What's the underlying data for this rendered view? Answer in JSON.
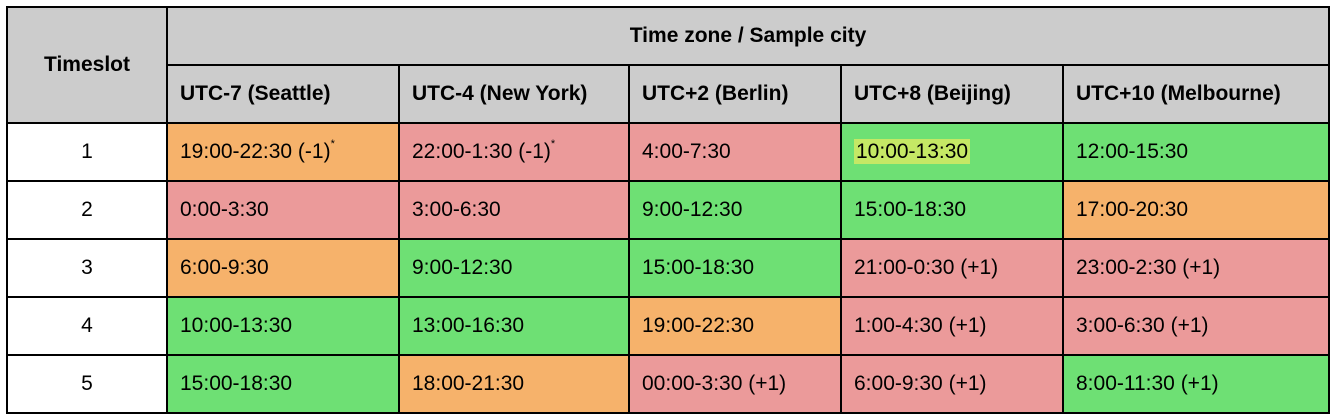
{
  "table": {
    "timeslot_header": "Timeslot",
    "group_header": "Time zone / Sample city",
    "columns": [
      "UTC-7 (Seattle)",
      "UTC-4 (New York)",
      "UTC+2 (Berlin)",
      "UTC+8 (Beijing)",
      "UTC+10 (Melbourne)"
    ],
    "rows": [
      {
        "slot": "1",
        "cells": [
          {
            "text": "19:00-22:30 (-1)",
            "note": "*",
            "color": "orange"
          },
          {
            "text": "22:00-1:30 (-1)",
            "note": "*",
            "color": "red"
          },
          {
            "text": "4:00-7:30",
            "note": "",
            "color": "red"
          },
          {
            "text": "10:00-13:30",
            "note": "",
            "color": "green",
            "highlight": "yellow-green"
          },
          {
            "text": "12:00-15:30",
            "note": "",
            "color": "green"
          }
        ]
      },
      {
        "slot": "2",
        "cells": [
          {
            "text": "0:00-3:30",
            "note": "",
            "color": "red"
          },
          {
            "text": "3:00-6:30",
            "note": "",
            "color": "red"
          },
          {
            "text": "9:00-12:30",
            "note": "",
            "color": "green"
          },
          {
            "text": "15:00-18:30",
            "note": "",
            "color": "green"
          },
          {
            "text": "17:00-20:30",
            "note": "",
            "color": "orange"
          }
        ]
      },
      {
        "slot": "3",
        "cells": [
          {
            "text": "6:00-9:30",
            "note": "",
            "color": "orange"
          },
          {
            "text": "9:00-12:30",
            "note": "",
            "color": "green"
          },
          {
            "text": "15:00-18:30",
            "note": "",
            "color": "green"
          },
          {
            "text": "21:00-0:30 (+1)",
            "note": "",
            "color": "red"
          },
          {
            "text": "23:00-2:30 (+1)",
            "note": "",
            "color": "red"
          }
        ]
      },
      {
        "slot": "4",
        "cells": [
          {
            "text": "10:00-13:30",
            "note": "",
            "color": "green"
          },
          {
            "text": "13:00-16:30",
            "note": "",
            "color": "green"
          },
          {
            "text": "19:00-22:30",
            "note": "",
            "color": "orange"
          },
          {
            "text": "1:00-4:30 (+1)",
            "note": "",
            "color": "red"
          },
          {
            "text": "3:00-6:30 (+1)",
            "note": "",
            "color": "red"
          }
        ]
      },
      {
        "slot": "5",
        "cells": [
          {
            "text": "15:00-18:30",
            "note": "",
            "color": "green"
          },
          {
            "text": "18:00-21:30",
            "note": "",
            "color": "orange"
          },
          {
            "text": "00:00-3:30 (+1)",
            "note": "",
            "color": "red"
          },
          {
            "text": "6:00-9:30 (+1)",
            "note": "",
            "color": "red"
          },
          {
            "text": "8:00-11:30 (+1)",
            "note": "",
            "color": "green"
          }
        ]
      }
    ]
  },
  "colors": {
    "green": "#6ee074",
    "red": "#eb9a9a",
    "orange": "#f6b26b",
    "yellow-green": "#c5e865",
    "header_bg": "#cccccc",
    "border": "#000000"
  }
}
